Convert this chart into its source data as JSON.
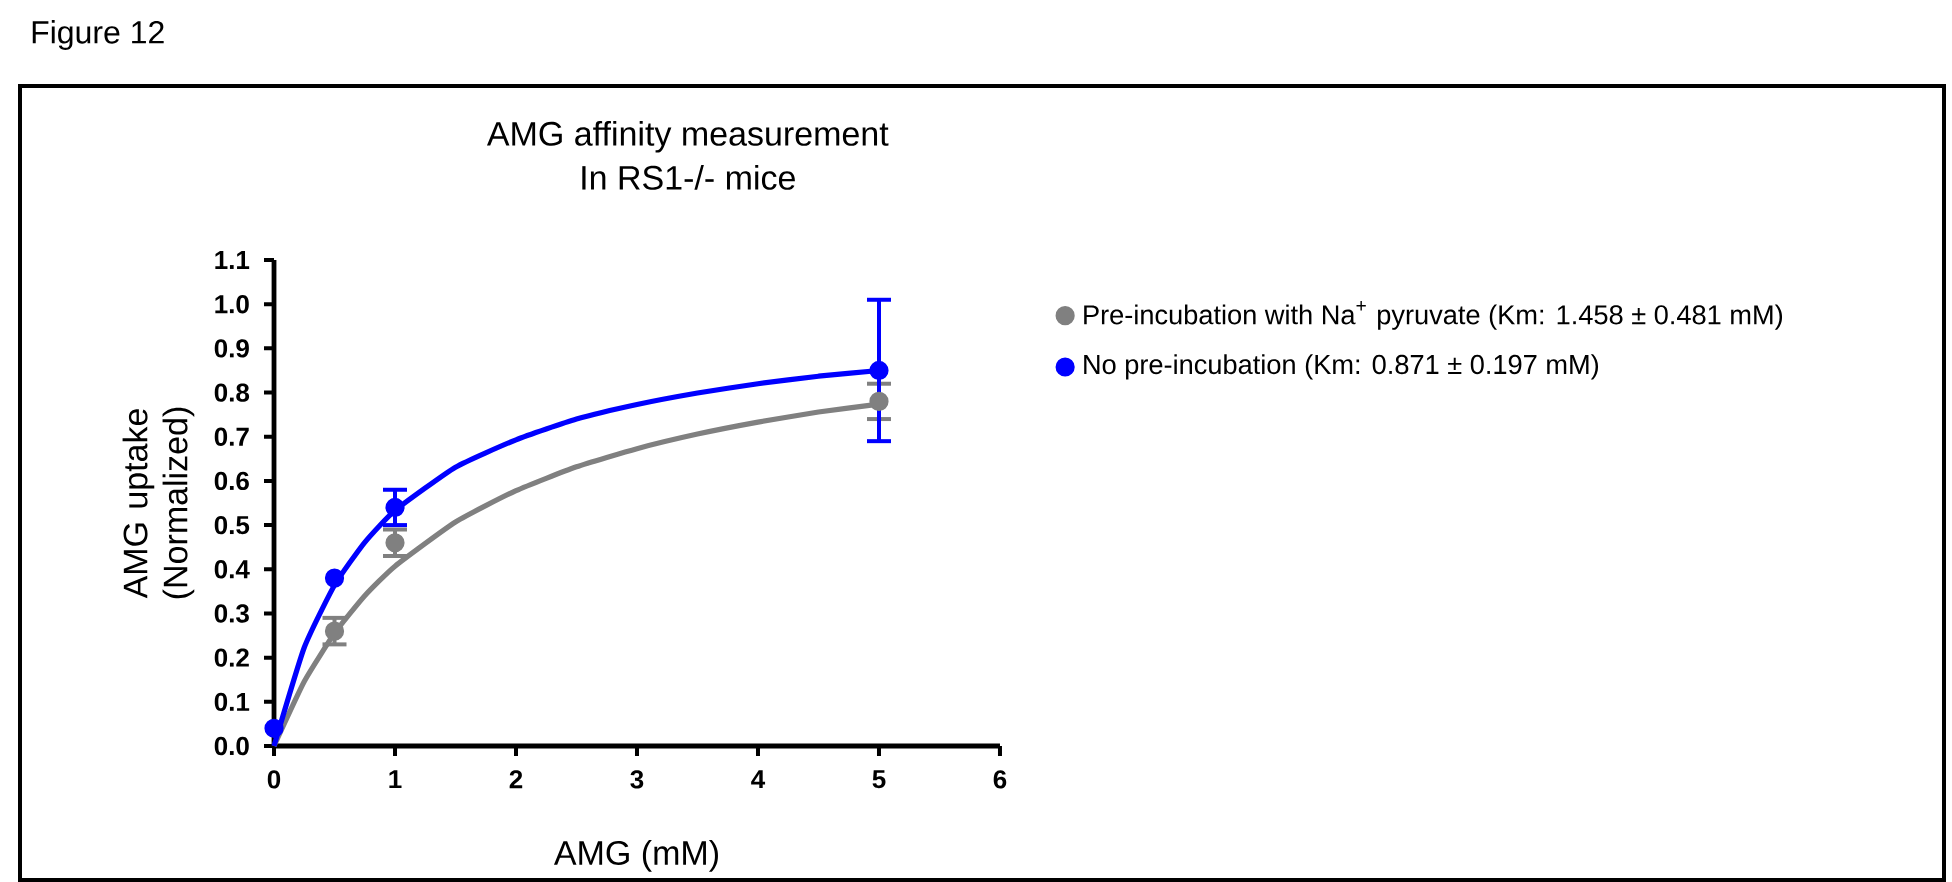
{
  "chart_data": {
    "type": "scatter",
    "title": "AMG affinity measurement",
    "subtitle": "In RS1-/- mice",
    "xlabel": "AMG (mM)",
    "ylabel": "AMG uptake (Normalized)",
    "annotations": [
      "Figure 12"
    ],
    "xlim": [
      0,
      6
    ],
    "xticks": [
      0,
      1,
      2,
      3,
      4,
      5,
      6
    ],
    "ylim": [
      0,
      1.1
    ],
    "yticks": [
      {
        "value": 0,
        "label": "0.0"
      },
      0.1,
      0.2,
      0.3,
      0.4,
      0.5,
      0.6,
      0.7,
      0.8,
      0.9,
      {
        "value": 1,
        "label": "1.0"
      },
      1.1
    ],
    "grid": false,
    "legend": "right",
    "series": [
      {
        "name": "Pre-incubation with Na$^{+}$ pyruvate (Km: 1.458 ± 0.481  mM)",
        "marker": "circle",
        "color": "#808080",
        "x": [
          0.5,
          1,
          5
        ],
        "values": [
          0.26,
          0.46,
          0.78
        ],
        "errors": [
          0.03,
          0.03,
          0.04
        ]
      },
      {
        "name": "No pre-incubation (Km: 0.871 ± 0.197  mM)",
        "marker": "circle",
        "color": "#0000ff",
        "x": [
          0,
          0.5,
          1,
          5
        ],
        "values": [
          0.04,
          0.38,
          0.54,
          0.85
        ],
        "errors": [
          null,
          null,
          0.04,
          0.16
        ]
      },
      {
        "type": "line",
        "marker": "none",
        "color": "#808080",
        "x": [
          0,
          0.25,
          0.5,
          0.75,
          1,
          1.5,
          2,
          2.5,
          3,
          3.5,
          4,
          4.5,
          5
        ],
        "values": [
          0,
          0.146,
          0.255,
          0.34,
          0.407,
          0.507,
          0.578,
          0.632,
          0.673,
          0.706,
          0.733,
          0.756,
          0.774
        ]
      },
      {
        "type": "line",
        "marker": "none",
        "color": "#0000ff",
        "x": [
          0,
          0.25,
          0.5,
          0.75,
          1,
          1.5,
          2,
          2.5,
          3,
          3.5,
          4,
          4.5,
          5
        ],
        "values": [
          0,
          0.223,
          0.364,
          0.461,
          0.533,
          0.631,
          0.693,
          0.74,
          0.773,
          0.799,
          0.82,
          0.837,
          0.85
        ]
      }
    ]
  }
}
